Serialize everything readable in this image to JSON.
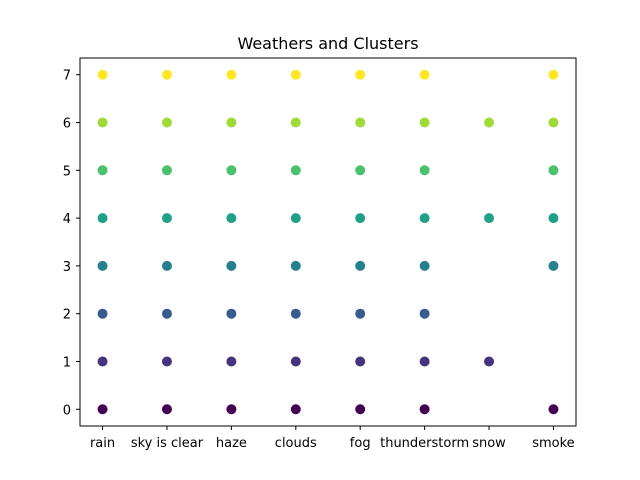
{
  "chart_data": {
    "type": "scatter",
    "title": "Weathers and Clusters",
    "xlabel": "",
    "ylabel": "",
    "categories": [
      "rain",
      "sky is clear",
      "haze",
      "clouds",
      "fog",
      "thunderstorm",
      "snow",
      "smoke"
    ],
    "yticks": [
      0,
      1,
      2,
      3,
      4,
      5,
      6,
      7
    ],
    "ylim": [
      -0.35,
      7.35
    ],
    "grid": false,
    "colormap": {
      "0": "#440154",
      "1": "#46327e",
      "2": "#365c8d",
      "3": "#277f8e",
      "4": "#1fa187",
      "5": "#4ac16d",
      "6": "#a0da39",
      "7": "#fde725"
    },
    "points": [
      {
        "x": "rain",
        "y": [
          0,
          1,
          2,
          3,
          4,
          5,
          6,
          7
        ]
      },
      {
        "x": "sky is clear",
        "y": [
          0,
          1,
          2,
          3,
          4,
          5,
          6,
          7
        ]
      },
      {
        "x": "haze",
        "y": [
          0,
          1,
          2,
          3,
          4,
          5,
          6,
          7
        ]
      },
      {
        "x": "clouds",
        "y": [
          0,
          1,
          2,
          3,
          4,
          5,
          6,
          7
        ]
      },
      {
        "x": "fog",
        "y": [
          0,
          1,
          2,
          3,
          4,
          5,
          6,
          7
        ]
      },
      {
        "x": "thunderstorm",
        "y": [
          0,
          1,
          2,
          3,
          4,
          5,
          6,
          7
        ]
      },
      {
        "x": "snow",
        "y": [
          1,
          4,
          6
        ]
      },
      {
        "x": "smoke",
        "y": [
          0,
          3,
          4,
          5,
          6,
          7
        ]
      }
    ]
  }
}
